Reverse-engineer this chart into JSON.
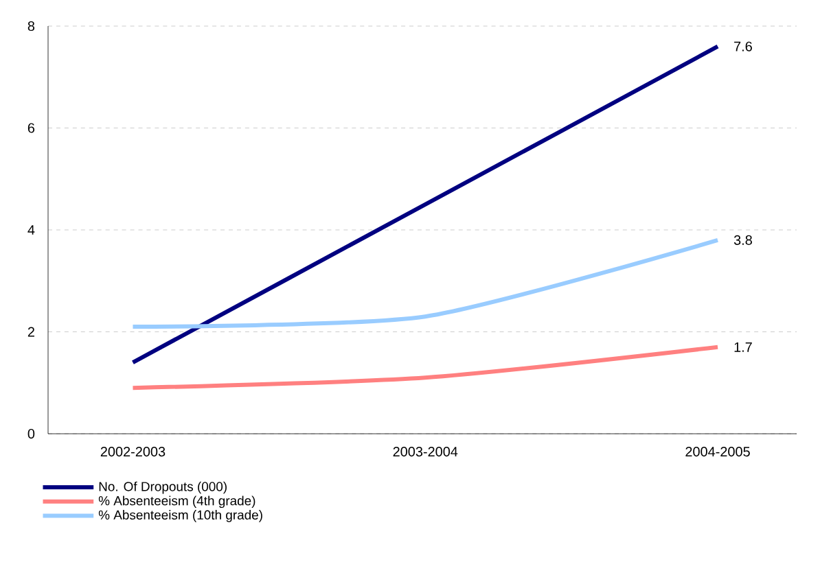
{
  "chart_data": {
    "type": "line",
    "categories": [
      "2002-2003",
      "2003-2004",
      "2004-2005"
    ],
    "series": [
      {
        "name": "No. Of Dropouts (000)",
        "color": "#000080",
        "values": [
          1.4,
          4.5,
          7.6
        ],
        "value_labels": [
          null,
          null,
          "7.6"
        ]
      },
      {
        "name": "% Absenteeism (4th grade)",
        "color": "#ff8080",
        "values": [
          0.9,
          1.1,
          1.7
        ],
        "value_labels": [
          null,
          null,
          "1.7"
        ]
      },
      {
        "name": "% Absenteeism (10th grade)",
        "color": "#99ccff",
        "values": [
          2.1,
          2.3,
          3.8
        ],
        "value_labels": [
          null,
          null,
          "3.8"
        ]
      }
    ],
    "ylim": [
      0,
      8
    ],
    "yticks": [
      0,
      2,
      4,
      6,
      8
    ],
    "grid": "y",
    "legend": "bottom left"
  }
}
